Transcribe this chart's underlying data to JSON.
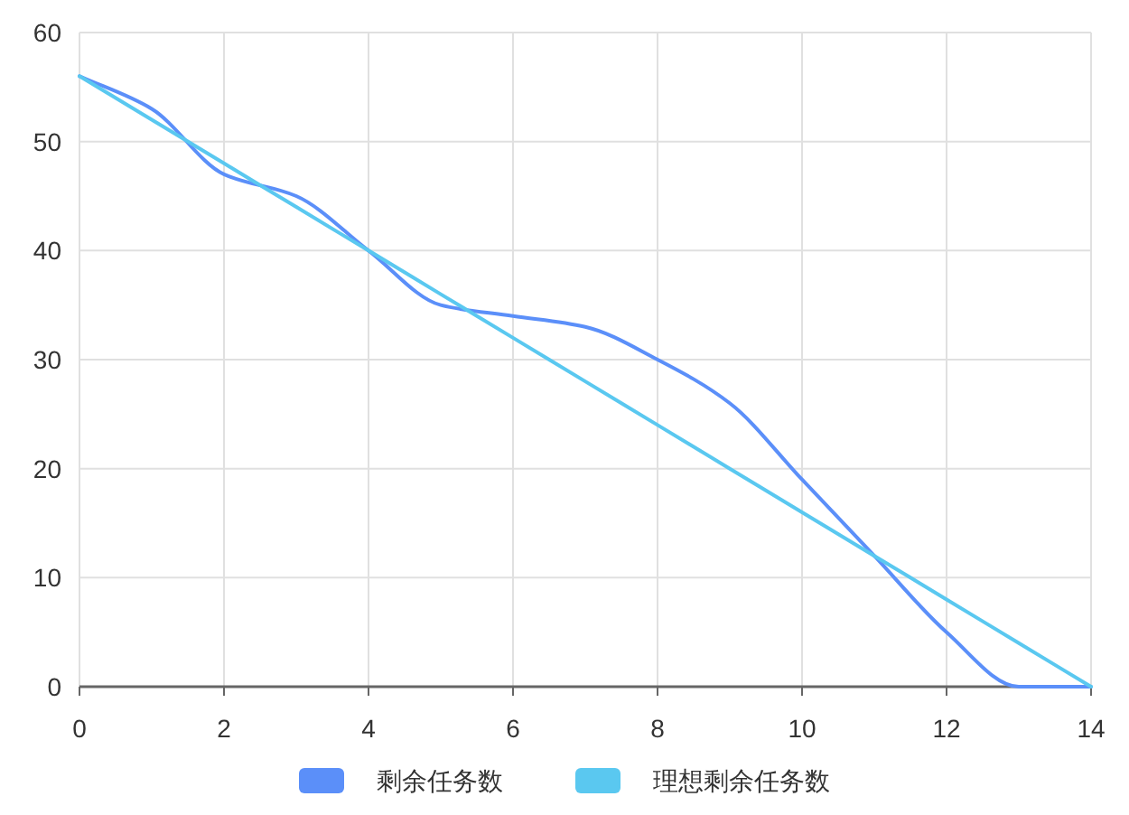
{
  "chart_data": {
    "type": "line",
    "x": [
      0,
      1,
      2,
      3,
      4,
      5,
      6,
      7,
      8,
      9,
      10,
      11,
      12,
      13,
      14
    ],
    "series": [
      {
        "name": "剩余任务数",
        "color": "#5b8ff9",
        "values": [
          56,
          53,
          47,
          45,
          40,
          35,
          34,
          33,
          30,
          26,
          19,
          12,
          5,
          0,
          0
        ]
      },
      {
        "name": "理想剩余任务数",
        "color": "#5ac8f0",
        "values": [
          56,
          52,
          48,
          44,
          40,
          36,
          32,
          28,
          24,
          20,
          16,
          12,
          8,
          4,
          0
        ]
      }
    ],
    "xlim": [
      0,
      14
    ],
    "xticks": [
      0,
      2,
      4,
      6,
      8,
      10,
      12,
      14
    ],
    "ylim": [
      0,
      60
    ],
    "yticks": [
      0,
      10,
      20,
      30,
      40,
      50,
      60
    ],
    "grid": true,
    "legend": "bottom",
    "marker": "none",
    "line_style": "solid"
  }
}
